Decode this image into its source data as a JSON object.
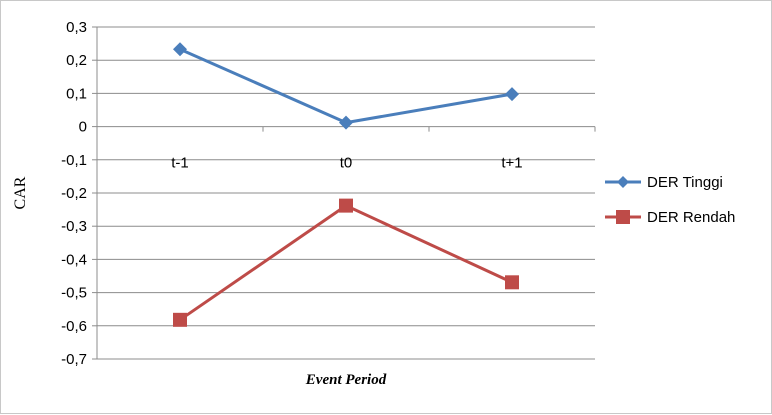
{
  "chart_data": {
    "type": "line",
    "title": "",
    "xlabel": "Event Period",
    "ylabel": "CAR",
    "categories": [
      "t-1",
      "t0",
      "t+1"
    ],
    "ylim": [
      -0.7,
      0.3
    ],
    "yticks": [
      0.3,
      0.2,
      0.1,
      0,
      -0.1,
      -0.2,
      -0.3,
      -0.4,
      -0.5,
      -0.6,
      -0.7
    ],
    "ytick_labels": [
      "0,3",
      "0,2",
      "0,1",
      "0",
      "-0,1",
      "-0,2",
      "-0,3",
      "-0,4",
      "-0,5",
      "-0,6",
      "-0,7"
    ],
    "grid": true,
    "legend_position": "right",
    "series": [
      {
        "name": "DER Tinggi",
        "values": [
          0.233,
          0.012,
          0.098
        ],
        "color": "#4a7ebb",
        "marker": "diamond"
      },
      {
        "name": "DER Rendah",
        "values": [
          -0.582,
          -0.238,
          -0.469
        ],
        "color": "#be4b48",
        "marker": "square"
      }
    ]
  }
}
